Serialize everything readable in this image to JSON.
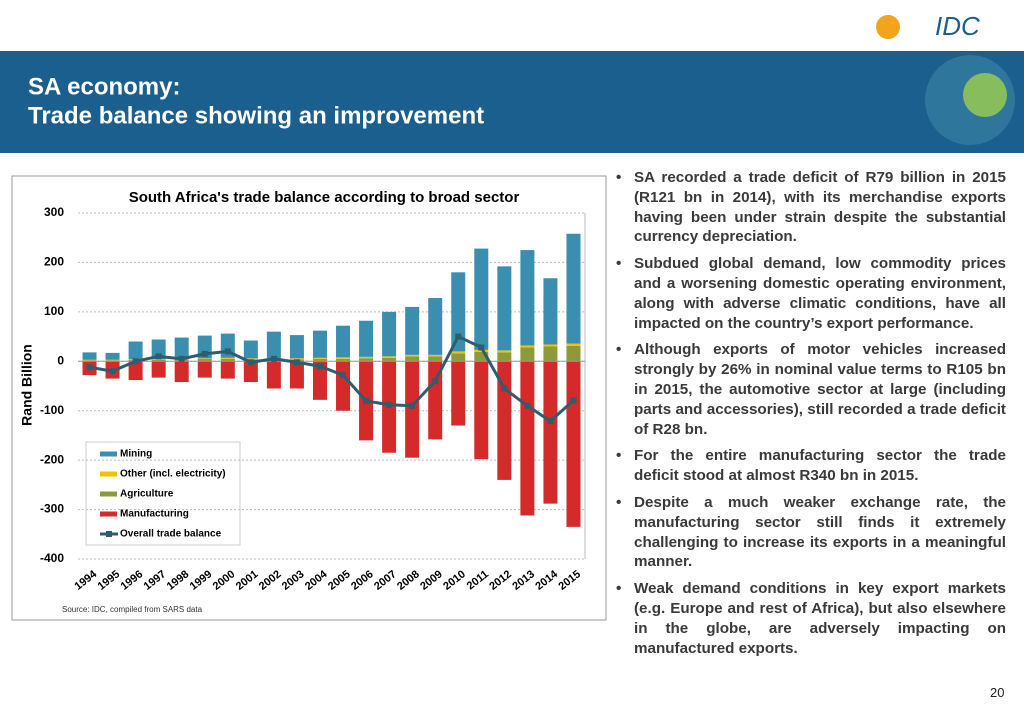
{
  "header": {
    "logo": "IDC",
    "title_line1": "SA economy:",
    "title_line2": "Trade balance showing an improvement"
  },
  "chart_data": {
    "type": "bar",
    "title": "South Africa's trade balance according to broad sector",
    "ylabel": "Rand Billion",
    "source": "Source: IDC, compiled from SARS data",
    "categories": [
      "1994",
      "1995",
      "1996",
      "1997",
      "1998",
      "1999",
      "2000",
      "2001",
      "2002",
      "2003",
      "2004",
      "2005",
      "2006",
      "2007",
      "2008",
      "2009",
      "2010",
      "2011",
      "2012",
      "2013",
      "2014",
      "2015"
    ],
    "ylim": [
      -400,
      300
    ],
    "yticks": [
      300,
      200,
      100,
      0,
      -100,
      -200,
      -300,
      -400
    ],
    "grid": true,
    "series": [
      {
        "name": "Mining",
        "color": "#3a8fb0",
        "values": [
          15,
          14,
          36,
          40,
          43,
          46,
          49,
          36,
          54,
          47,
          55,
          64,
          73,
          90,
          97,
          115,
          160,
          205,
          170,
          193,
          134,
          222
        ]
      },
      {
        "name": "Other (incl. electricity)",
        "color": "#f2c200",
        "values": [
          1,
          1,
          1,
          1,
          1,
          1,
          2,
          2,
          2,
          2,
          2,
          3,
          3,
          3,
          3,
          3,
          4,
          4,
          4,
          4,
          4,
          5
        ]
      },
      {
        "name": "Agriculture",
        "color": "#8c9a3c",
        "values": [
          2,
          2,
          3,
          3,
          4,
          5,
          5,
          4,
          4,
          4,
          5,
          5,
          6,
          7,
          10,
          10,
          16,
          19,
          18,
          28,
          30,
          31
        ]
      },
      {
        "name": "Manufacturing",
        "color": "#d42a2a",
        "values": [
          -28,
          -35,
          -38,
          -33,
          -42,
          -33,
          -35,
          -42,
          -55,
          -55,
          -78,
          -100,
          -160,
          -185,
          -195,
          -158,
          -130,
          -198,
          -240,
          -312,
          -288,
          -335
        ]
      },
      {
        "name": "Overall trade balance",
        "type": "line",
        "color": "#2e5d6e",
        "values": [
          -12,
          -20,
          0,
          10,
          5,
          15,
          20,
          -2,
          5,
          -2,
          -10,
          -28,
          -80,
          -88,
          -90,
          -40,
          50,
          28,
          -55,
          -90,
          -121,
          -79
        ]
      }
    ]
  },
  "bullets": [
    "SA recorded a trade deficit of R79 billion in 2015 (R121 bn in 2014), with its merchandise exports having been under strain despite the substantial currency depreciation.",
    "Subdued global demand, low commodity prices and a worsening domestic operating environment, along with adverse climatic conditions, have all impacted on the country’s export performance.",
    "Although exports of motor vehicles increased strongly by 26% in nominal value terms to R105 bn in 2015, the automotive sector at large (including parts and accessories), still recorded a trade deficit of R28 bn.",
    "For the entire manufacturing sector the trade deficit stood at almost R340 bn in 2015.",
    "Despite a much weaker exchange rate, the manufacturing sector still finds it extremely challenging to increase its exports in a meaningful manner.",
    "Weak demand conditions in key export markets (e.g. Europe and rest of Africa), but also elsewhere in the globe, are adversely impacting on manufactured exports."
  ],
  "page_number": "20"
}
